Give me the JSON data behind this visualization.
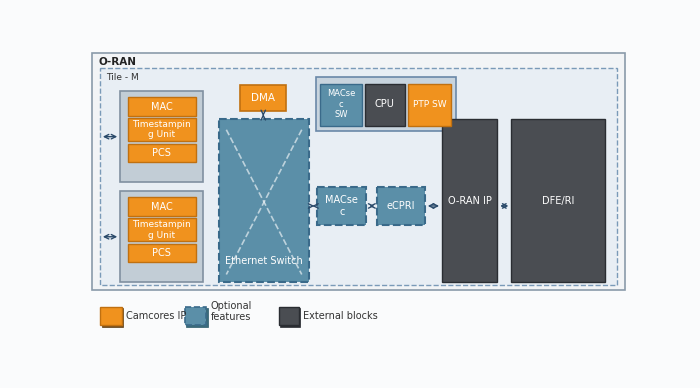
{
  "title": "O-RAN",
  "tile_label": "Tile - M",
  "orange": "#F0921E",
  "orange_edge": "#C07010",
  "teal": "#5B8FA8",
  "teal_edge": "#3A6A8A",
  "dark": "#4A4D52",
  "dark_edge": "#2A2D32",
  "gray_box": "#B8C4CE",
  "gray_box_edge": "#7A8A9A",
  "cpu_dark": "#4A4D52",
  "cpu_box_bg": "#C8D4DE",
  "cpu_box_edge": "#6A88A8",
  "outer_bg": "#F2F4F6",
  "outer_edge": "#8A9AAA",
  "tile_bg": "#E8EEF4",
  "tile_edge": "#7A9AB8",
  "arrow_color": "#2A4A6A",
  "white": "#FFFFFF",
  "legend_orange_label": "Camcores IP",
  "legend_teal_label": "Optional\nfeatures",
  "legend_dark_label": "External blocks"
}
